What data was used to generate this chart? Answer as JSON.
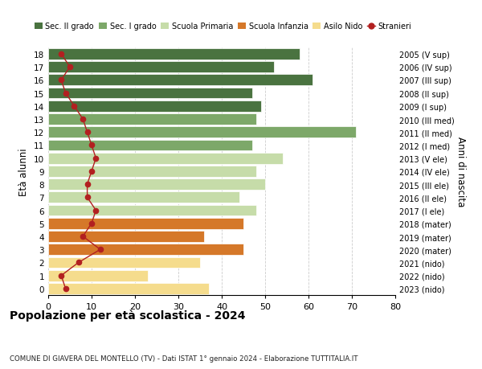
{
  "ages": [
    18,
    17,
    16,
    15,
    14,
    13,
    12,
    11,
    10,
    9,
    8,
    7,
    6,
    5,
    4,
    3,
    2,
    1,
    0
  ],
  "years": [
    "2005 (V sup)",
    "2006 (IV sup)",
    "2007 (III sup)",
    "2008 (II sup)",
    "2009 (I sup)",
    "2010 (III med)",
    "2011 (II med)",
    "2012 (I med)",
    "2013 (V ele)",
    "2014 (IV ele)",
    "2015 (III ele)",
    "2016 (II ele)",
    "2017 (I ele)",
    "2018 (mater)",
    "2019 (mater)",
    "2020 (mater)",
    "2021 (nido)",
    "2022 (nido)",
    "2023 (nido)"
  ],
  "bar_values": [
    58,
    52,
    61,
    47,
    49,
    48,
    71,
    47,
    54,
    48,
    50,
    44,
    48,
    45,
    36,
    45,
    35,
    23,
    37
  ],
  "stranieri": [
    3,
    5,
    3,
    4,
    6,
    8,
    9,
    10,
    11,
    10,
    9,
    9,
    11,
    10,
    8,
    12,
    7,
    3,
    4
  ],
  "color_map": [
    "#4a7340",
    "#4a7340",
    "#4a7340",
    "#4a7340",
    "#4a7340",
    "#7da869",
    "#7da869",
    "#7da869",
    "#c6dca9",
    "#c6dca9",
    "#c6dca9",
    "#c6dca9",
    "#c6dca9",
    "#d57829",
    "#d57829",
    "#d57829",
    "#f5dc8d",
    "#f5dc8d",
    "#f5dc8d"
  ],
  "legend_labels": [
    "Sec. II grado",
    "Sec. I grado",
    "Scuola Primaria",
    "Scuola Infanzia",
    "Asilo Nido",
    "Stranieri"
  ],
  "legend_colors": [
    "#4a7340",
    "#7da869",
    "#c6dca9",
    "#d57829",
    "#f5dc8d",
    "#b22020"
  ],
  "title": "Popolazione per età scolastica - 2024",
  "subtitle": "COMUNE DI GIAVERA DEL MONTELLO (TV) - Dati ISTAT 1° gennaio 2024 - Elaborazione TUTTITALIA.IT",
  "ylabel": "Età alunni",
  "y2label": "Anni di nascita",
  "xlim": [
    0,
    80
  ],
  "xticks": [
    0,
    10,
    20,
    30,
    40,
    50,
    60,
    70,
    80
  ],
  "stranieri_color": "#b22020",
  "grid_color": "#cccccc"
}
